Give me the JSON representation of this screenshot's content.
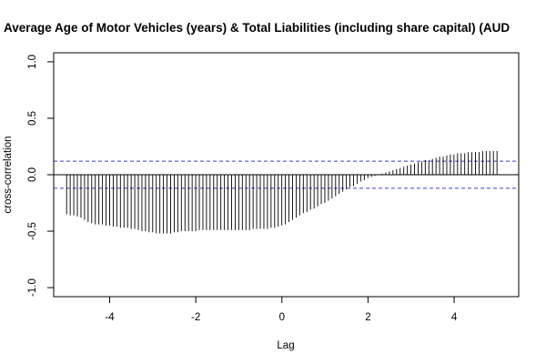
{
  "chart_data": {
    "type": "bar",
    "title": "Average Age of Motor Vehicles (years) & Total Liabilities (including share capital) (AUD",
    "xlabel": "Lag",
    "ylabel": "cross-correlation",
    "xlim": [
      -5.3,
      5.5
    ],
    "ylim": [
      -1.08,
      1.08
    ],
    "x_ticks": [
      -4,
      -2,
      0,
      2,
      4
    ],
    "x_tick_labels": [
      "-4",
      "-2",
      "0",
      "2",
      "4"
    ],
    "y_ticks": [
      -1.0,
      -0.5,
      0.0,
      0.5,
      1.0
    ],
    "y_tick_labels": [
      "-1.0",
      "-0.5",
      "0.0",
      "0.5",
      "1.0"
    ],
    "confidence_bounds": [
      0.12,
      -0.12
    ],
    "bound_color": "#3b3bd6",
    "bar_color": "#000000",
    "x_start": -5.0,
    "x_step": 0.0833,
    "values": [
      -0.35,
      -0.36,
      -0.36,
      -0.37,
      -0.38,
      -0.4,
      -0.42,
      -0.43,
      -0.44,
      -0.44,
      -0.44,
      -0.45,
      -0.45,
      -0.46,
      -0.46,
      -0.47,
      -0.47,
      -0.47,
      -0.48,
      -0.48,
      -0.49,
      -0.5,
      -0.5,
      -0.51,
      -0.51,
      -0.52,
      -0.52,
      -0.52,
      -0.52,
      -0.52,
      -0.51,
      -0.51,
      -0.5,
      -0.5,
      -0.5,
      -0.5,
      -0.5,
      -0.49,
      -0.49,
      -0.49,
      -0.49,
      -0.49,
      -0.49,
      -0.49,
      -0.49,
      -0.49,
      -0.49,
      -0.49,
      -0.49,
      -0.49,
      -0.49,
      -0.49,
      -0.48,
      -0.48,
      -0.48,
      -0.48,
      -0.48,
      -0.47,
      -0.47,
      -0.46,
      -0.45,
      -0.44,
      -0.42,
      -0.4,
      -0.38,
      -0.36,
      -0.34,
      -0.33,
      -0.31,
      -0.3,
      -0.28,
      -0.26,
      -0.25,
      -0.23,
      -0.21,
      -0.19,
      -0.17,
      -0.15,
      -0.13,
      -0.11,
      -0.1,
      -0.08,
      -0.06,
      -0.05,
      -0.03,
      -0.02,
      -0.01,
      0.0,
      0.01,
      0.02,
      0.03,
      0.04,
      0.05,
      0.06,
      0.07,
      0.08,
      0.09,
      0.1,
      0.11,
      0.12,
      0.13,
      0.13,
      0.14,
      0.15,
      0.16,
      0.16,
      0.17,
      0.18,
      0.18,
      0.19,
      0.19,
      0.19,
      0.2,
      0.2,
      0.2,
      0.2,
      0.21,
      0.21,
      0.21,
      0.21,
      0.21
    ]
  }
}
